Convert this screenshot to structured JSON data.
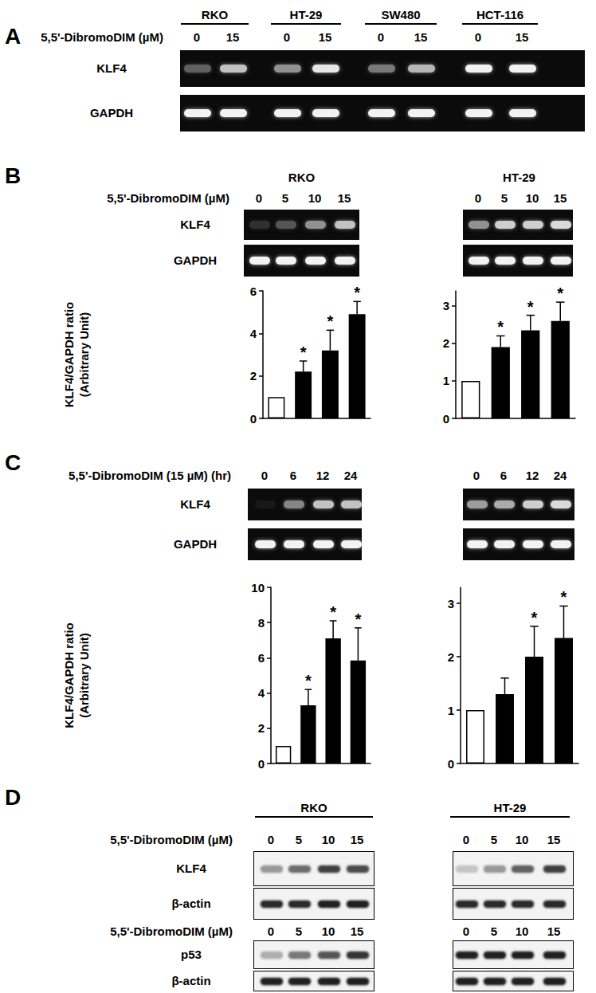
{
  "chart_data": [
    {
      "type": "bar",
      "categories": [
        null,
        null,
        null,
        null
      ],
      "values": [
        1,
        2.2,
        3.2,
        4.9
      ],
      "errors": [
        null,
        0.5,
        0.95,
        0.6
      ],
      "significance": [
        null,
        "*",
        "*",
        "*"
      ],
      "colors": [
        "#ffffff",
        "#000000",
        "#000000",
        "#000000"
      ],
      "ylim": [
        0,
        6
      ],
      "yticks": [
        0,
        2,
        4,
        6
      ],
      "y_label": [
        "KLF4/GAPDH ratio",
        "(Arbitrary Unit)"
      ],
      "tick_labels": "y",
      "grid": false
    },
    {
      "type": "bar",
      "categories": [
        null,
        null,
        null,
        null
      ],
      "values": [
        1,
        1.9,
        2.35,
        2.6
      ],
      "errors": [
        null,
        0.3,
        0.4,
        0.5
      ],
      "significance": [
        null,
        "*",
        "*",
        "*"
      ],
      "colors": [
        "#ffffff",
        "#000000",
        "#000000",
        "#000000"
      ],
      "ylim": [
        0,
        3.4
      ],
      "yticks": [
        0,
        1,
        2,
        3
      ],
      "tick_labels": "y",
      "grid": false
    },
    {
      "type": "bar",
      "categories": [
        null,
        null,
        null,
        null
      ],
      "values": [
        1,
        3.3,
        7.1,
        5.85
      ],
      "errors": [
        null,
        0.9,
        1.0,
        1.85
      ],
      "significance": [
        null,
        "*",
        "*",
        "*"
      ],
      "colors": [
        "#ffffff",
        "#000000",
        "#000000",
        "#000000"
      ],
      "ylim": [
        0,
        10
      ],
      "yticks": [
        0,
        2,
        4,
        6,
        8,
        10
      ],
      "y_label": [
        "KLF4/GAPDH ratio",
        "(Arbitrary Unit)"
      ],
      "tick_labels": "y",
      "grid": false
    },
    {
      "type": "bar",
      "categories": [
        null,
        null,
        null,
        null
      ],
      "values": [
        1,
        1.3,
        2.0,
        2.35
      ],
      "errors": [
        null,
        0.3,
        0.57,
        0.6
      ],
      "significance": [
        null,
        null,
        "*",
        "*"
      ],
      "colors": [
        "#ffffff",
        "#000000",
        "#000000",
        "#000000"
      ],
      "ylim": [
        0,
        3.3
      ],
      "yticks": [
        0,
        1,
        2,
        3
      ],
      "tick_labels": "y",
      "grid": false
    }
  ],
  "figure": {
    "panels": [
      {
        "label": "A",
        "cell_lines": [
          "RKO",
          "HT-29",
          "SW480",
          "HCT-116"
        ],
        "sections": [
          {
            "treatment": "5,5'-DibromoDIM (µM)",
            "lanes": [
              [
                0,
                15
              ],
              [
                0,
                15
              ],
              [
                0,
                15
              ],
              [
                0,
                15
              ]
            ],
            "gels": [
              {
                "name": "KLF4",
                "intensity": [
                  [
                    0.35,
                    0.75
                  ],
                  [
                    0.55,
                    0.9
                  ],
                  [
                    0.45,
                    0.7
                  ],
                  [
                    0.95,
                    0.95
                  ]
                ]
              },
              {
                "name": "GAPDH",
                "intensity": [
                  [
                    0.95,
                    0.95
                  ],
                  [
                    0.95,
                    0.95
                  ],
                  [
                    0.95,
                    0.95
                  ],
                  [
                    0.95,
                    0.95
                  ]
                ]
              }
            ]
          }
        ]
      },
      {
        "label": "B",
        "cell_lines": [
          "RKO",
          "HT-29"
        ],
        "sections": [
          {
            "treatment": "5,5'-DibromoDIM (µM)",
            "lanes": [
              [
                0,
                5,
                10,
                15
              ],
              [
                0,
                5,
                10,
                15
              ]
            ],
            "gels": [
              {
                "name": "KLF4",
                "intensity": [
                  [
                    0.15,
                    0.3,
                    0.55,
                    0.75
                  ],
                  [
                    0.55,
                    0.8,
                    0.8,
                    0.85
                  ]
                ]
              },
              {
                "name": "GAPDH",
                "intensity": [
                  [
                    0.95,
                    0.95,
                    0.95,
                    0.95
                  ],
                  [
                    0.95,
                    0.95,
                    0.95,
                    0.95
                  ]
                ]
              }
            ]
          }
        ]
      },
      {
        "label": "C",
        "sections": [
          {
            "treatment": "5,5'-DibromoDIM (15 µM) (hr)",
            "lanes": [
              [
                0,
                6,
                12,
                24
              ],
              [
                0,
                6,
                12,
                24
              ]
            ],
            "gels": [
              {
                "name": "KLF4",
                "intensity": [
                  [
                    0.05,
                    0.5,
                    0.75,
                    0.75
                  ],
                  [
                    0.6,
                    0.65,
                    0.8,
                    0.85
                  ]
                ]
              },
              {
                "name": "GAPDH",
                "intensity": [
                  [
                    0.95,
                    0.95,
                    0.95,
                    0.95
                  ],
                  [
                    0.95,
                    0.95,
                    0.95,
                    0.95
                  ]
                ]
              }
            ]
          }
        ]
      },
      {
        "label": "D",
        "cell_lines": [
          "RKO",
          "HT-29"
        ],
        "sections": [
          {
            "treatment": "5,5'-DibromoDIM (µM)",
            "lanes": [
              [
                0,
                5,
                10,
                15
              ],
              [
                0,
                5,
                10,
                15
              ]
            ],
            "gels": [
              {
                "name": "KLF4",
                "intensity": [
                  [
                    0.4,
                    0.6,
                    0.8,
                    0.75
                  ],
                  [
                    0.2,
                    0.4,
                    0.65,
                    0.8
                  ]
                ]
              },
              {
                "name": "β-actin",
                "intensity": [
                  [
                    0.9,
                    0.9,
                    0.95,
                    0.95
                  ],
                  [
                    0.9,
                    0.9,
                    0.9,
                    0.9
                  ]
                ]
              }
            ]
          },
          {
            "treatment": "5,5'-DibromoDIM (µM)",
            "lanes": [
              [
                0,
                5,
                10,
                15
              ],
              [
                0,
                5,
                10,
                15
              ]
            ],
            "gels": [
              {
                "name": "p53",
                "intensity": [
                  [
                    0.3,
                    0.55,
                    0.7,
                    0.85
                  ],
                  [
                    0.95,
                    0.95,
                    0.95,
                    0.95
                  ]
                ]
              },
              {
                "name": "β-actin",
                "intensity": [
                  [
                    0.95,
                    0.95,
                    0.95,
                    0.95
                  ],
                  [
                    0.95,
                    0.95,
                    0.95,
                    0.95
                  ]
                ]
              }
            ]
          }
        ]
      }
    ]
  }
}
